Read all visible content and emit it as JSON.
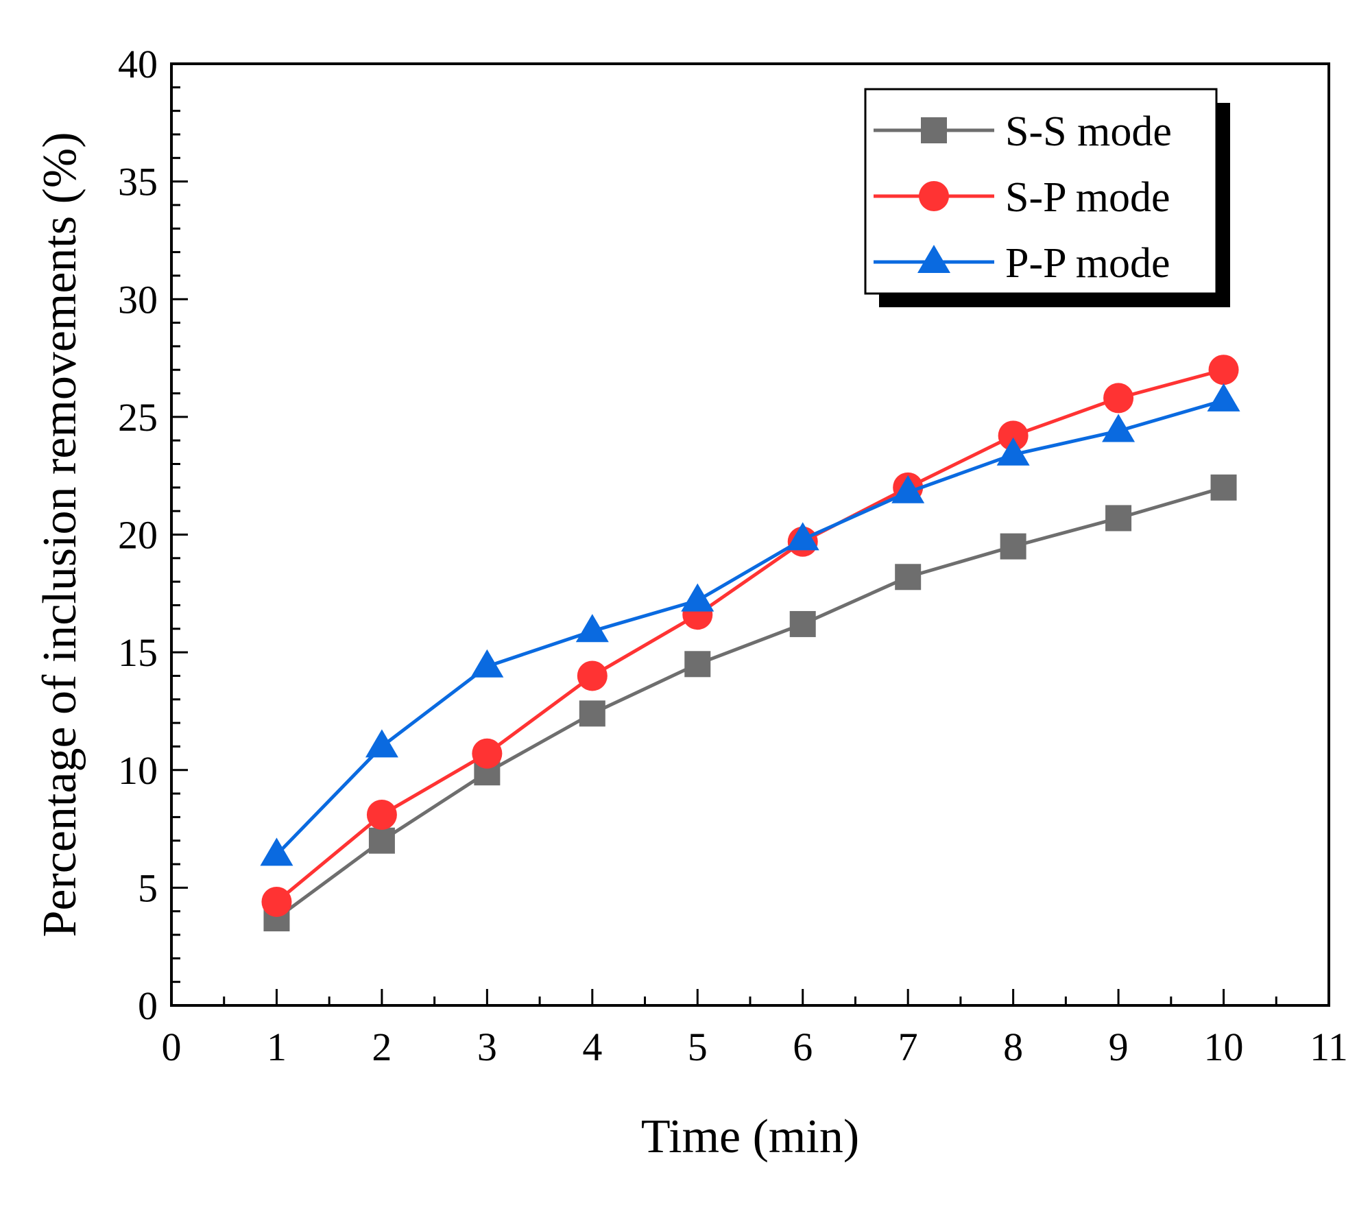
{
  "chart_data": {
    "type": "line",
    "xlabel": "Time (min)",
    "ylabel": "Percentage of inclusion removements (%)",
    "xlim": [
      0,
      11
    ],
    "ylim": [
      0,
      40
    ],
    "xticks": [
      0,
      1,
      2,
      3,
      4,
      5,
      6,
      7,
      8,
      9,
      10,
      11
    ],
    "xtick_labels": [
      "0",
      "1",
      "2",
      "3",
      "4",
      "5",
      "6",
      "7",
      "8",
      "9",
      "10",
      "11"
    ],
    "yticks": [
      0,
      5,
      10,
      15,
      20,
      25,
      30,
      35,
      40
    ],
    "ytick_labels": [
      "0",
      "5",
      "10",
      "15",
      "20",
      "25",
      "30",
      "35",
      "40"
    ],
    "grid": false,
    "legend_position": "top-right",
    "x": [
      1,
      2,
      3,
      4,
      5,
      6,
      7,
      8,
      9,
      10
    ],
    "series": [
      {
        "name": "S-S mode",
        "marker": "square",
        "color": "#6e6e6e",
        "values": [
          3.7,
          7.0,
          9.9,
          12.4,
          14.5,
          16.2,
          18.2,
          19.5,
          20.7,
          22.0
        ]
      },
      {
        "name": "S-P mode",
        "marker": "circle",
        "color": "#ff3333",
        "values": [
          4.4,
          8.1,
          10.7,
          14.0,
          16.6,
          19.7,
          22.0,
          24.2,
          25.8,
          27.0
        ]
      },
      {
        "name": "P-P mode",
        "marker": "triangle",
        "color": "#0a6ae0",
        "values": [
          6.4,
          11.0,
          14.4,
          15.9,
          17.2,
          19.8,
          21.8,
          23.4,
          24.4,
          25.7
        ]
      }
    ]
  }
}
